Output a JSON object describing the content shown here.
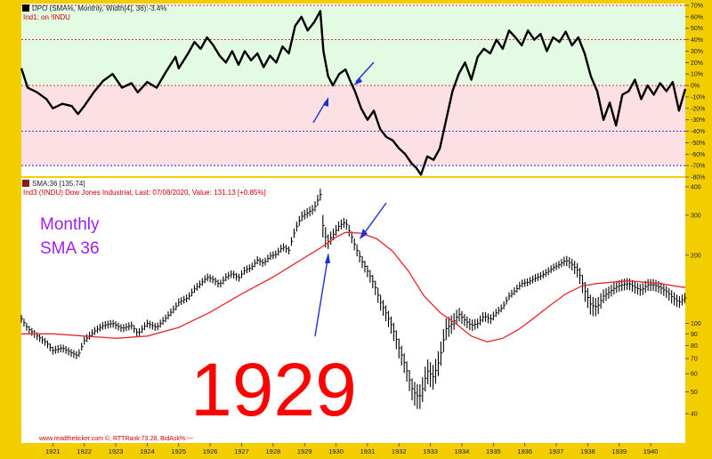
{
  "upper_panel": {
    "header": "DPO (SMA%, Monthly, Width[4], 36):-3.4%",
    "subheader": "Ind1: on !INDU"
  },
  "lower_panel": {
    "header": "SMA:36 [135.74]",
    "subheader": "Ind3 (!INDU) Dow Jones Industrial, Last: 07/08/2020,   Value: 131.13 [+0.85%]",
    "annotation_line1": "Monthly",
    "annotation_line2": "SMA 36",
    "big_label": "1929",
    "footer": "www.readtheticker.com ©, RTTRank:73.28, BidAsk%:---"
  },
  "colors": {
    "frame": "#f2cd00",
    "price": "#000000",
    "sma": "#e8282a",
    "arrow": "#1f2fd6",
    "annotation": "#a020f0",
    "big_label": "#ff0000",
    "green_zone": "#e2fbe2",
    "pink_zone": "#fde0e4",
    "red_level": "#dd2222",
    "blue_level": "#2222dd"
  },
  "chart_data": [
    {
      "type": "line",
      "name": "DPO",
      "x": [
        1920.0,
        1920.2,
        1920.5,
        1920.8,
        1921.0,
        1921.3,
        1921.6,
        1921.8,
        1922.0,
        1922.3,
        1922.6,
        1922.9,
        1923.2,
        1923.5,
        1923.7,
        1924.0,
        1924.3,
        1924.6,
        1924.9,
        1925.0,
        1925.3,
        1925.5,
        1925.7,
        1925.9,
        1926.1,
        1926.3,
        1926.5,
        1926.7,
        1926.9,
        1927.1,
        1927.3,
        1927.5,
        1927.7,
        1927.9,
        1928.1,
        1928.3,
        1928.5,
        1928.7,
        1928.9,
        1929.1,
        1929.3,
        1929.5,
        1929.6,
        1929.75,
        1929.9,
        1930.1,
        1930.3,
        1930.45,
        1930.6,
        1930.8,
        1931.0,
        1931.2,
        1931.4,
        1931.6,
        1931.8,
        1932.0,
        1932.2,
        1932.4,
        1932.55,
        1932.7,
        1932.9,
        1933.1,
        1933.3,
        1933.5,
        1933.7,
        1933.9,
        1934.1,
        1934.3,
        1934.5,
        1934.7,
        1934.9,
        1935.1,
        1935.3,
        1935.5,
        1935.7,
        1935.9,
        1936.1,
        1936.3,
        1936.5,
        1936.7,
        1936.9,
        1937.1,
        1937.3,
        1937.5,
        1937.7,
        1937.9,
        1938.1,
        1938.3,
        1938.5,
        1938.7,
        1938.9,
        1939.1,
        1939.3,
        1939.5,
        1939.7,
        1939.9,
        1940.1,
        1940.3,
        1940.5,
        1940.7,
        1940.9,
        1941.1
      ],
      "values": [
        15,
        -2,
        -6,
        -12,
        -20,
        -16,
        -18,
        -25,
        -18,
        -6,
        4,
        10,
        -2,
        2,
        -6,
        3,
        -2,
        12,
        25,
        15,
        28,
        38,
        32,
        42,
        35,
        26,
        20,
        30,
        18,
        30,
        22,
        28,
        16,
        26,
        20,
        34,
        28,
        52,
        60,
        48,
        55,
        65,
        30,
        8,
        0,
        10,
        14,
        4,
        -5,
        -20,
        -30,
        -22,
        -38,
        -45,
        -48,
        -55,
        -60,
        -68,
        -72,
        -78,
        -62,
        -65,
        -55,
        -30,
        -5,
        10,
        20,
        5,
        25,
        32,
        28,
        40,
        32,
        48,
        42,
        35,
        48,
        40,
        45,
        30,
        42,
        38,
        47,
        35,
        42,
        28,
        8,
        -5,
        -30,
        -15,
        -35,
        -8,
        -5,
        5,
        -12,
        0,
        -8,
        2,
        -5,
        3,
        -22,
        -3
      ],
      "ylim": [
        -80,
        70
      ],
      "ylabels": [
        "70%",
        "60%",
        "50%",
        "40%",
        "30%",
        "20%",
        "10%",
        "0%",
        "-10%",
        "-20%",
        "-30%",
        "-40%",
        "-50%",
        "-60%",
        "-70%",
        "-80%"
      ],
      "levels": {
        "red": [
          70,
          40,
          0
        ],
        "blue": [
          -40,
          -70
        ]
      }
    },
    {
      "type": "bar",
      "name": "Dow Jones Industrial (monthly bars)",
      "scale": "log",
      "ylim": [
        30,
        430
      ],
      "yticks": [
        400,
        300,
        200,
        100,
        90,
        80,
        70,
        60,
        50,
        40
      ],
      "xticks": [
        "1921",
        "1922",
        "1923",
        "1924",
        "1925",
        "1926",
        "1927",
        "1928",
        "1929",
        "1930",
        "1931",
        "1932",
        "1933",
        "1934",
        "1935",
        "1936",
        "1937",
        "1938",
        "1939",
        "1940"
      ],
      "x_range": [
        1920.0,
        1941.1
      ],
      "x": [
        1920.0,
        1920.2,
        1920.5,
        1920.8,
        1921.0,
        1921.3,
        1921.6,
        1921.8,
        1922.0,
        1922.3,
        1922.6,
        1922.9,
        1923.2,
        1923.5,
        1923.7,
        1924.0,
        1924.3,
        1924.6,
        1924.9,
        1925.0,
        1925.3,
        1925.5,
        1925.7,
        1925.9,
        1926.1,
        1926.3,
        1926.5,
        1926.7,
        1926.9,
        1927.1,
        1927.3,
        1927.5,
        1927.7,
        1927.9,
        1928.1,
        1928.3,
        1928.5,
        1928.7,
        1928.9,
        1929.1,
        1929.3,
        1929.5,
        1929.6,
        1929.75,
        1929.9,
        1930.1,
        1930.3,
        1930.45,
        1930.6,
        1930.8,
        1931.0,
        1931.2,
        1931.4,
        1931.6,
        1931.8,
        1932.0,
        1932.2,
        1932.4,
        1932.55,
        1932.7,
        1932.9,
        1933.1,
        1933.3,
        1933.5,
        1933.7,
        1933.9,
        1934.1,
        1934.3,
        1934.5,
        1934.7,
        1934.9,
        1935.1,
        1935.3,
        1935.5,
        1935.7,
        1935.9,
        1936.1,
        1936.3,
        1936.5,
        1936.7,
        1936.9,
        1937.1,
        1937.3,
        1937.5,
        1937.7,
        1937.9,
        1938.1,
        1938.3,
        1938.5,
        1938.7,
        1938.9,
        1939.1,
        1939.3,
        1939.5,
        1939.7,
        1939.9,
        1940.1,
        1940.3,
        1940.5,
        1940.7,
        1940.9,
        1941.1
      ],
      "close": [
        105,
        95,
        88,
        82,
        76,
        78,
        74,
        72,
        84,
        92,
        98,
        100,
        95,
        98,
        90,
        100,
        96,
        106,
        118,
        124,
        130,
        142,
        150,
        160,
        156,
        148,
        160,
        166,
        158,
        172,
        176,
        190,
        184,
        198,
        202,
        218,
        210,
        258,
        296,
        308,
        320,
        370,
        250,
        230,
        245,
        270,
        280,
        250,
        220,
        190,
        170,
        150,
        125,
        110,
        95,
        78,
        65,
        52,
        48,
        48,
        62,
        58,
        70,
        95,
        100,
        110,
        103,
        98,
        100,
        108,
        104,
        112,
        118,
        132,
        140,
        150,
        152,
        158,
        162,
        168,
        176,
        182,
        190,
        182,
        170,
        140,
        120,
        118,
        132,
        138,
        145,
        148,
        150,
        144,
        140,
        148,
        148,
        144,
        138,
        130,
        124,
        130
      ],
      "range": [
        0.08,
        0.08,
        0.08,
        0.08,
        0.08,
        0.08,
        0.08,
        0.08,
        0.08,
        0.08,
        0.08,
        0.08,
        0.08,
        0.08,
        0.08,
        0.08,
        0.08,
        0.08,
        0.08,
        0.08,
        0.08,
        0.08,
        0.08,
        0.08,
        0.08,
        0.08,
        0.08,
        0.08,
        0.08,
        0.08,
        0.08,
        0.08,
        0.08,
        0.08,
        0.08,
        0.08,
        0.08,
        0.1,
        0.1,
        0.1,
        0.1,
        0.12,
        0.25,
        0.15,
        0.12,
        0.1,
        0.1,
        0.12,
        0.12,
        0.12,
        0.12,
        0.14,
        0.16,
        0.16,
        0.18,
        0.2,
        0.2,
        0.22,
        0.25,
        0.25,
        0.25,
        0.25,
        0.25,
        0.22,
        0.18,
        0.14,
        0.12,
        0.12,
        0.1,
        0.1,
        0.1,
        0.08,
        0.08,
        0.08,
        0.08,
        0.08,
        0.08,
        0.08,
        0.08,
        0.08,
        0.08,
        0.08,
        0.1,
        0.12,
        0.15,
        0.2,
        0.2,
        0.18,
        0.14,
        0.12,
        0.12,
        0.12,
        0.12,
        0.12,
        0.12,
        0.12,
        0.12,
        0.12,
        0.12,
        0.14,
        0.12,
        0.1
      ]
    },
    {
      "type": "line",
      "name": "SMA 36",
      "scale": "log",
      "x": [
        1920.0,
        1921.0,
        1922.0,
        1923.0,
        1924.0,
        1925.0,
        1926.0,
        1927.0,
        1928.0,
        1929.0,
        1929.5,
        1930.0,
        1930.3,
        1930.8,
        1931.3,
        1931.8,
        1932.3,
        1932.8,
        1933.3,
        1933.8,
        1934.3,
        1934.8,
        1935.3,
        1935.8,
        1936.3,
        1936.8,
        1937.3,
        1937.8,
        1938.3,
        1938.8,
        1939.3,
        1939.8,
        1940.3,
        1940.8,
        1941.1
      ],
      "values": [
        90,
        90,
        88,
        86,
        88,
        96,
        112,
        135,
        160,
        195,
        215,
        240,
        252,
        250,
        236,
        208,
        170,
        132,
        112,
        100,
        88,
        83,
        86,
        94,
        106,
        120,
        135,
        146,
        150,
        152,
        154,
        152,
        150,
        146,
        144
      ]
    }
  ]
}
